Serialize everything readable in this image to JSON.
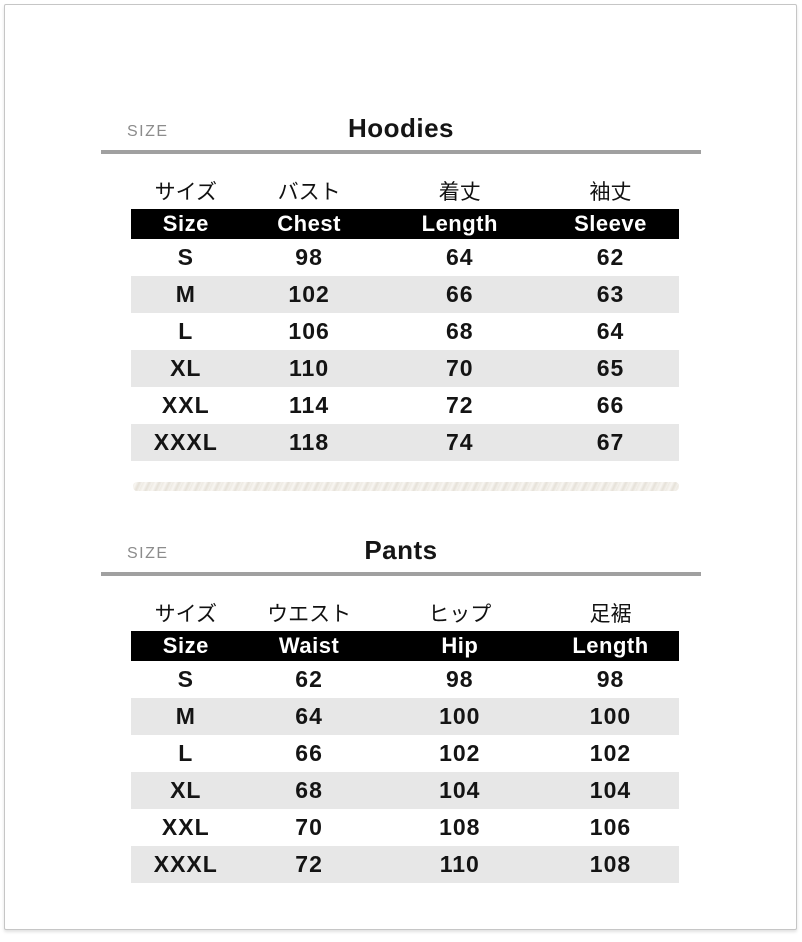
{
  "colors": {
    "bar_bg": "#000000",
    "bar_text": "#ffffff",
    "row_alt_bg": "#e7e7e7",
    "rule_gray": "#a0a0a0",
    "size_label_gray": "#8c8c8c"
  },
  "sections": [
    {
      "size_label": "SIZE",
      "title": "Hoodies",
      "columns_jp": [
        "サイズ",
        "バスト",
        "着丈",
        "袖丈"
      ],
      "columns_en": [
        "Size",
        "Chest",
        "Length",
        "Sleeve"
      ],
      "rows": [
        {
          "size": "S",
          "values": [
            "98",
            "64",
            "62"
          ]
        },
        {
          "size": "M",
          "values": [
            "102",
            "66",
            "63"
          ]
        },
        {
          "size": "L",
          "values": [
            "106",
            "68",
            "64"
          ]
        },
        {
          "size": "XL",
          "values": [
            "110",
            "70",
            "65"
          ]
        },
        {
          "size": "XXL",
          "values": [
            "114",
            "72",
            "66"
          ]
        },
        {
          "size": "XXXL",
          "values": [
            "118",
            "74",
            "67"
          ]
        }
      ]
    },
    {
      "size_label": "SIZE",
      "title": "Pants",
      "columns_jp": [
        "サイズ",
        "ウエスト",
        "ヒップ",
        "足裾"
      ],
      "columns_en": [
        "Size",
        "Waist",
        "Hip",
        "Length"
      ],
      "rows": [
        {
          "size": "S",
          "values": [
            "62",
            "98",
            "98"
          ]
        },
        {
          "size": "M",
          "values": [
            "64",
            "100",
            "100"
          ]
        },
        {
          "size": "L",
          "values": [
            "66",
            "102",
            "102"
          ]
        },
        {
          "size": "XL",
          "values": [
            "68",
            "104",
            "104"
          ]
        },
        {
          "size": "XXL",
          "values": [
            "70",
            "108",
            "106"
          ]
        },
        {
          "size": "XXXL",
          "values": [
            "72",
            "110",
            "108"
          ]
        }
      ]
    }
  ]
}
